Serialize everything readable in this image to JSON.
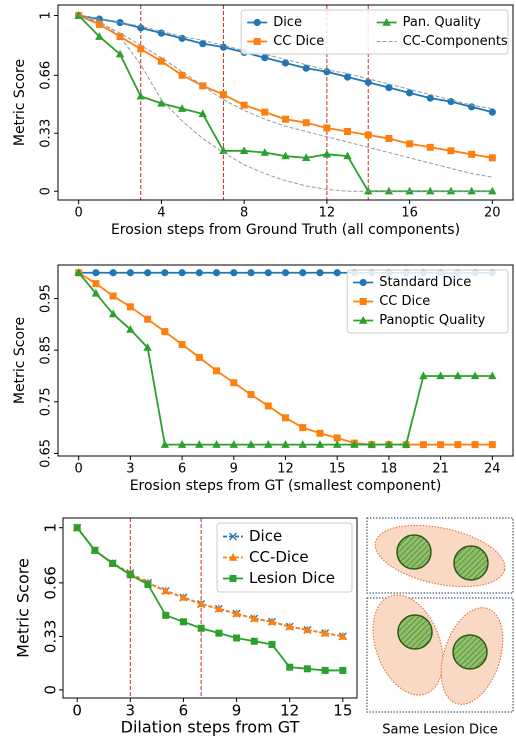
{
  "chart_data": [
    {
      "type": "line",
      "x": [
        0,
        1,
        2,
        3,
        4,
        5,
        6,
        7,
        8,
        9,
        10,
        11,
        12,
        13,
        14,
        15,
        16,
        17,
        18,
        19,
        20
      ],
      "xlim": [
        -1,
        21
      ],
      "xticks": [
        0,
        4,
        8,
        12,
        16,
        20
      ],
      "ylim": [
        -0.05,
        1.06
      ],
      "yticks": [
        0,
        0.33,
        0.66,
        1
      ],
      "x_label": "Erosion steps from Ground Truth (all components)",
      "y_label": "Metric Score",
      "vlines": [
        3,
        7,
        12,
        14
      ],
      "vline_color": "#d62728",
      "legend": "upper right",
      "legend_ncol": 2,
      "series": [
        {
          "name": "Dice",
          "color": "#1f77b4",
          "marker": "o",
          "linestyle": "solid",
          "values": [
            1,
            0.98,
            0.96,
            0.93,
            0.9,
            0.87,
            0.84,
            0.82,
            0.79,
            0.76,
            0.73,
            0.7,
            0.68,
            0.65,
            0.62,
            0.59,
            0.56,
            0.53,
            0.51,
            0.48,
            0.45
          ]
        },
        {
          "name": "CC Dice",
          "color": "#ff7f0e",
          "marker": "s",
          "linestyle": "solid",
          "values": [
            1,
            0.95,
            0.88,
            0.81,
            0.74,
            0.66,
            0.6,
            0.55,
            0.49,
            0.45,
            0.41,
            0.39,
            0.36,
            0.34,
            0.32,
            0.3,
            0.27,
            0.25,
            0.23,
            0.21,
            0.19
          ]
        },
        {
          "name": "Pan. Quality",
          "color": "#2ca02c",
          "marker": "^",
          "linestyle": "solid",
          "values": [
            1,
            0.88,
            0.78,
            0.54,
            0.5,
            0.47,
            0.44,
            0.23,
            0.23,
            0.22,
            0.2,
            0.19,
            0.21,
            0.2,
            0,
            0,
            0,
            0,
            0,
            0,
            0
          ]
        },
        {
          "name": "CC-Components",
          "color": "#999999",
          "linestyle": "dashed",
          "values": [
            1,
            0.97,
            0.88,
            0.72,
            0.52,
            0.4,
            0.3,
            0.22,
            0.15,
            0.1,
            0.06,
            0.03,
            0.01,
            0,
            0,
            0,
            0,
            0,
            0,
            0,
            0
          ]
        },
        {
          "color": "#999999",
          "linestyle": "dashed",
          "values": [
            1,
            0.96,
            0.9,
            0.83,
            0.76,
            0.68,
            0.6,
            0.52,
            0.46,
            0.41,
            0.37,
            0.34,
            0.31,
            0.28,
            0.25,
            0.22,
            0.19,
            0.16,
            0.13,
            0.1,
            0.08
          ]
        },
        {
          "color": "#999999",
          "linestyle": "dashed",
          "values": [
            1,
            0.98,
            0.96,
            0.94,
            0.91,
            0.88,
            0.86,
            0.83,
            0.8,
            0.78,
            0.75,
            0.72,
            0.69,
            0.67,
            0.64,
            0.61,
            0.58,
            0.55,
            0.52,
            0.49,
            0.47
          ]
        }
      ]
    },
    {
      "type": "line",
      "x": [
        0,
        1,
        2,
        3,
        4,
        5,
        6,
        7,
        8,
        9,
        10,
        11,
        12,
        13,
        14,
        15,
        16,
        17,
        18,
        19,
        20,
        21,
        22,
        23,
        24
      ],
      "xlim": [
        -1.2,
        25.2
      ],
      "xticks": [
        0,
        3,
        6,
        9,
        12,
        15,
        18,
        21,
        24
      ],
      "ylim": [
        0.645,
        1.015
      ],
      "yticks": [
        0.65,
        0.75,
        0.85,
        0.95
      ],
      "x_label": "Erosion steps from GT (smallest component)",
      "y_label": "Metric Score",
      "legend": "upper right",
      "legend_ncol": 1,
      "series": [
        {
          "name": "Standard Dice",
          "color": "#1f77b4",
          "marker": "o",
          "linestyle": "solid",
          "values": [
            1,
            1,
            1,
            1,
            1,
            1,
            1,
            1,
            1,
            1,
            1,
            1,
            1,
            1,
            1,
            1,
            1,
            1,
            1,
            1,
            1,
            1,
            1,
            1,
            1
          ]
        },
        {
          "name": "CC Dice",
          "color": "#ff7f0e",
          "marker": "s",
          "linestyle": "solid",
          "values": [
            1,
            0.979,
            0.955,
            0.934,
            0.91,
            0.886,
            0.861,
            0.836,
            0.81,
            0.787,
            0.764,
            0.742,
            0.719,
            0.7,
            0.689,
            0.68,
            0.67,
            0.667,
            0.667,
            0.667,
            0.667,
            0.667,
            0.667,
            0.667,
            0.667
          ]
        },
        {
          "name": "Panoptic Quality",
          "color": "#2ca02c",
          "marker": "^",
          "linestyle": "solid",
          "values": [
            1,
            0.96,
            0.92,
            0.89,
            0.855,
            0.667,
            0.667,
            0.667,
            0.667,
            0.667,
            0.667,
            0.667,
            0.667,
            0.667,
            0.667,
            0.667,
            0.667,
            0.667,
            0.667,
            0.667,
            0.8,
            0.8,
            0.8,
            0.8,
            0.8
          ]
        }
      ]
    },
    {
      "type": "line",
      "x": [
        0,
        1,
        2,
        3,
        4,
        5,
        6,
        7,
        8,
        9,
        10,
        11,
        12,
        13,
        14,
        15
      ],
      "xlim": [
        -0.8,
        15.8
      ],
      "xticks": [
        0,
        3,
        6,
        9,
        12,
        15
      ],
      "ylim": [
        -0.05,
        1.06
      ],
      "yticks": [
        0,
        0.33,
        0.66,
        1
      ],
      "x_label": "Dilation steps from GT",
      "y_label": "Metric Score",
      "vlines": [
        3,
        7
      ],
      "vline_color": "#d62728",
      "legend": "upper right",
      "legend_ncol": 1,
      "series": [
        {
          "name": "Dice",
          "color": "#1f77b4",
          "marker": "x",
          "linestyle": "dashed",
          "values": [
            1,
            0.86,
            0.78,
            0.72,
            0.66,
            0.61,
            0.57,
            0.53,
            0.5,
            0.47,
            0.44,
            0.42,
            0.39,
            0.37,
            0.35,
            0.33
          ]
        },
        {
          "name": "CC-Dice",
          "color": "#ff7f0e",
          "marker": "^",
          "linestyle": "dashed",
          "values": [
            1,
            0.86,
            0.78,
            0.72,
            0.66,
            0.61,
            0.57,
            0.53,
            0.5,
            0.47,
            0.44,
            0.42,
            0.39,
            0.37,
            0.35,
            0.33
          ]
        },
        {
          "name": "Lesion Dice",
          "color": "#2ca02c",
          "marker": "s",
          "linestyle": "solid",
          "values": [
            1,
            0.86,
            0.78,
            0.71,
            0.65,
            0.46,
            0.42,
            0.38,
            0.35,
            0.32,
            0.3,
            0.28,
            0.14,
            0.13,
            0.12,
            0.12
          ]
        }
      ]
    }
  ],
  "illustration": {
    "caption": "Same Lesion Dice"
  }
}
